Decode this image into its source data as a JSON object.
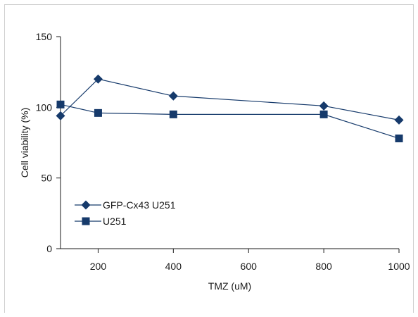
{
  "chart_data": {
    "type": "line",
    "xlabel": "TMZ (uM)",
    "ylabel": "Cell viability (%)",
    "xlim": [
      100,
      1000
    ],
    "ylim": [
      0,
      150
    ],
    "xticks": [
      200,
      400,
      600,
      800,
      1000
    ],
    "yticks": [
      0,
      50,
      100,
      150
    ],
    "legend_position": "lower-left",
    "colors": {
      "series": "#163a6b"
    },
    "series": [
      {
        "name": "GFP-Cx43 U251",
        "marker": "diamond",
        "x": [
          100,
          200,
          400,
          800,
          1000
        ],
        "y": [
          94,
          120,
          108,
          101,
          91
        ]
      },
      {
        "name": "U251",
        "marker": "square",
        "x": [
          100,
          200,
          400,
          800,
          1000
        ],
        "y": [
          102,
          96,
          95,
          95,
          78
        ]
      }
    ]
  }
}
